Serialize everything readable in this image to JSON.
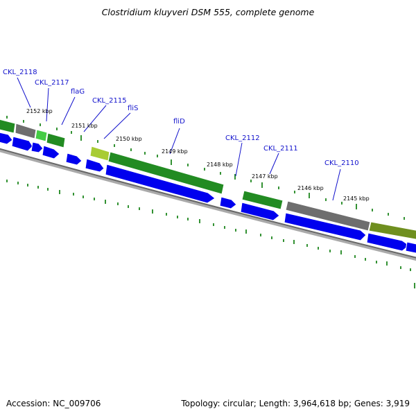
{
  "title": "Clostridium kluyveri DSM 555, complete genome",
  "footer": {
    "accession": "Accession: NC_009706",
    "topology": "Topology: circular; Length: 3,964,618 bp; Genes: 3,919"
  },
  "colors": {
    "cds_arrow": "#0000ee",
    "gene_green": "#228b22",
    "gene_gray": "#6e6e6e",
    "gene_olive": "#6f8f1f",
    "gene_lightgreen": "#44cc44",
    "backbone": "#808080",
    "tick": "#007700",
    "label": "#1010cc"
  },
  "gene_labels": [
    "CKL_2118",
    "CKL_2117",
    "flaG",
    "CKL_2115",
    "fliS",
    "fliD",
    "CKL_2112",
    "CKL_2111",
    "CKL_2110"
  ],
  "kbp_labels": [
    "2152 kbp",
    "2151 kbp",
    "2150 kbp",
    "2149 kbp",
    "2148 kbp",
    "2147 kbp",
    "2146 kbp",
    "2145 kbp"
  ]
}
